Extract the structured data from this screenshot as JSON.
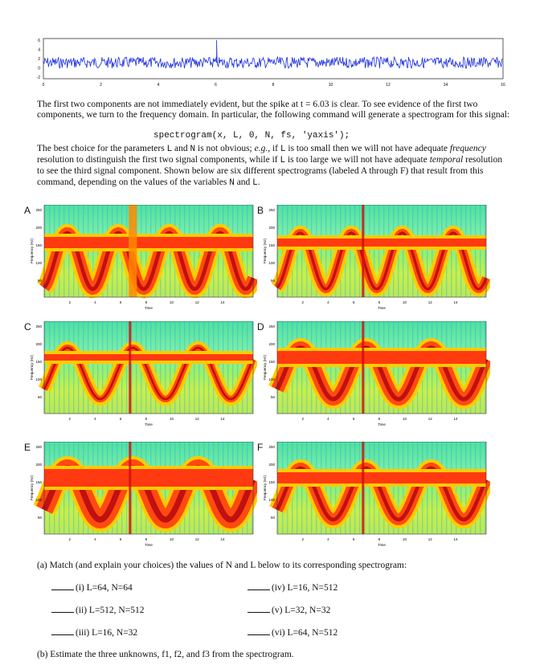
{
  "signal_plot": {
    "y_ticks": [
      "6",
      "4",
      "2",
      "0",
      "-2"
    ],
    "x_ticks": [
      "0",
      "2",
      "4",
      "6",
      "8",
      "10",
      "12",
      "14",
      "16"
    ]
  },
  "text": {
    "para1": "The first two components are not immediately evident, but the spike at t = 6.03 is clear. To see evidence of the first two components, we turn to the frequency domain. In particular, the following command will generate a spectrogram for this signal:",
    "command": "spectrogram(x, L, 0, N, fs, 'yaxis');",
    "para2_a": "The best choice for the parameters ",
    "para2_L1": "L",
    "para2_b": " and ",
    "para2_N1": "N",
    "para2_c": " is not obvious; ",
    "para2_eg": "e.g.",
    "para2_d": ", if ",
    "para2_L2": "L",
    "para2_e": " is too small then we will not have adequate ",
    "para2_freq": "frequency",
    "para2_f": " resolution to distinguish the first two signal components, while if ",
    "para2_L3": "L",
    "para2_g": " is too large we will not have adequate ",
    "para2_temp": "temporal",
    "para2_h": " resolution to see the third signal component. Shown below are six different spectrograms (labeled A through F) that result from this command, depending on the values of the variables ",
    "para2_N2": "N",
    "para2_i": " and ",
    "para2_L4": "L",
    "para2_j": "."
  },
  "panels": [
    {
      "label": "A",
      "ylabel": "Frequency (Hz)",
      "xlabel": "Time",
      "y_ticks": [
        "250",
        "200",
        "150",
        "100",
        "50"
      ],
      "x_ticks": [
        "2",
        "4",
        "6",
        "8",
        "10",
        "12",
        "14"
      ]
    },
    {
      "label": "B",
      "ylabel": "Frequency (Hz)",
      "xlabel": "Time",
      "y_ticks": [
        "250",
        "200",
        "150",
        "100",
        "50"
      ],
      "x_ticks": [
        "2",
        "4",
        "6",
        "8",
        "10",
        "12",
        "14"
      ]
    },
    {
      "label": "C",
      "ylabel": "Frequency (Hz)",
      "xlabel": "Time",
      "y_ticks": [
        "250",
        "200",
        "150",
        "100",
        "50"
      ],
      "x_ticks": [
        "2",
        "4",
        "6",
        "8",
        "10",
        "12",
        "14"
      ]
    },
    {
      "label": "D",
      "ylabel": "Frequency (Hz)",
      "xlabel": "Time",
      "y_ticks": [
        "250",
        "200",
        "150",
        "100",
        "50"
      ],
      "x_ticks": [
        "2",
        "4",
        "6",
        "8",
        "10",
        "12",
        "14"
      ]
    },
    {
      "label": "E",
      "ylabel": "Frequency (Hz)",
      "xlabel": "Time",
      "y_ticks": [
        "250",
        "200",
        "150",
        "100",
        "50"
      ],
      "x_ticks": [
        "2",
        "4",
        "6",
        "8",
        "10",
        "12",
        "14"
      ]
    },
    {
      "label": "F",
      "ylabel": "Frequency (Hz)",
      "xlabel": "Time",
      "y_ticks": [
        "250",
        "200",
        "150",
        "100",
        "50"
      ],
      "x_ticks": [
        "2",
        "4",
        "6",
        "8",
        "10",
        "12",
        "14"
      ]
    }
  ],
  "questions": {
    "a": "(a) Match (and explain your choices) the values of N and L below to its corresponding spectrogram:",
    "items": [
      "(i) L=64, N=64",
      "(iv) L=16, N=512",
      "(ii) L=512, N=512",
      "(v) L=32, N=32",
      "(iii) L=16, N=32",
      "(vi) L=64, N=512"
    ],
    "b": "(b) Estimate the three unknowns, f1, f2, and f3 from the spectrogram."
  }
}
